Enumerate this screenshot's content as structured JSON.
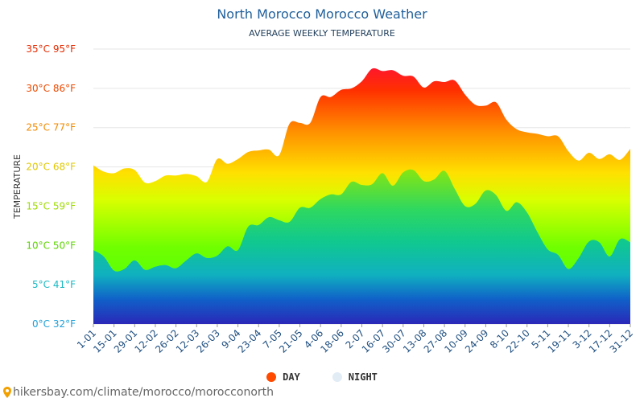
{
  "header": {
    "title": "North Morocco Morocco Weather",
    "subtitle": "AVERAGE WEEKLY TEMPERATURE"
  },
  "legend": {
    "day_label": "DAY",
    "night_label": "NIGHT",
    "day_color": "#ff4a00",
    "night_color": "#e2ecf5"
  },
  "footer": {
    "url": "hikersbay.com/climate/morocco/morocconorth"
  },
  "chart_data": {
    "type": "area",
    "title": "North Morocco Morocco Weather",
    "subtitle": "AVERAGE WEEKLY TEMPERATURE",
    "ylabel": "TEMPERATURE",
    "ylim": [
      0,
      35
    ],
    "grid": true,
    "legend_position": "bottom",
    "y_ticks": [
      {
        "value": 0,
        "label": "0°C 32°F",
        "color": "#1ea0d8"
      },
      {
        "value": 5,
        "label": "5°C 41°F",
        "color": "#19b9c4"
      },
      {
        "value": 10,
        "label": "10°C 50°F",
        "color": "#5dd400"
      },
      {
        "value": 15,
        "label": "15°C 59°F",
        "color": "#9edc00"
      },
      {
        "value": 20,
        "label": "20°C 68°F",
        "color": "#e0c800"
      },
      {
        "value": 25,
        "label": "25°C 77°F",
        "color": "#f28a00"
      },
      {
        "value": 30,
        "label": "30°C 86°F",
        "color": "#ee4a00"
      },
      {
        "value": 35,
        "label": "35°C 95°F",
        "color": "#e62a00"
      }
    ],
    "x_tick_labels": [
      "1-01",
      "15-01",
      "29-01",
      "12-02",
      "26-02",
      "12-03",
      "26-03",
      "9-04",
      "23-04",
      "7-05",
      "21-05",
      "4-06",
      "18-06",
      "2-07",
      "16-07",
      "30-07",
      "13-08",
      "27-08",
      "10-09",
      "24-09",
      "8-10",
      "22-10",
      "5-11",
      "19-11",
      "3-12",
      "17-12",
      "31-12"
    ],
    "series": [
      {
        "name": "DAY",
        "values": [
          20.2,
          19.4,
          19.2,
          19.8,
          19.6,
          18.0,
          18.2,
          18.9,
          18.9,
          19.1,
          18.8,
          18.1,
          21.0,
          20.4,
          21.0,
          21.9,
          22.1,
          22.2,
          21.5,
          25.5,
          25.6,
          25.6,
          28.9,
          28.9,
          29.8,
          30.0,
          30.9,
          32.5,
          32.2,
          32.3,
          31.6,
          31.5,
          30.1,
          30.9,
          30.8,
          31.0,
          29.2,
          27.9,
          27.8,
          28.2,
          26.0,
          24.8,
          24.4,
          24.2,
          23.9,
          23.9,
          22.0,
          20.8,
          21.8,
          21.0,
          21.6,
          20.9,
          22.3
        ]
      },
      {
        "name": "NIGHT",
        "values": [
          9.4,
          8.6,
          6.8,
          7.0,
          8.1,
          6.9,
          7.3,
          7.5,
          7.1,
          8.1,
          9.0,
          8.4,
          8.7,
          9.9,
          9.4,
          12.4,
          12.6,
          13.6,
          13.2,
          13.0,
          14.8,
          14.8,
          15.9,
          16.5,
          16.5,
          18.1,
          17.7,
          17.8,
          19.2,
          17.6,
          19.3,
          19.6,
          18.2,
          18.4,
          19.5,
          17.2,
          15.0,
          15.3,
          17.0,
          16.4,
          14.4,
          15.5,
          14.2,
          11.7,
          9.5,
          8.8,
          7.0,
          8.4,
          10.5,
          10.4,
          8.6,
          10.8,
          10.4
        ]
      }
    ]
  }
}
